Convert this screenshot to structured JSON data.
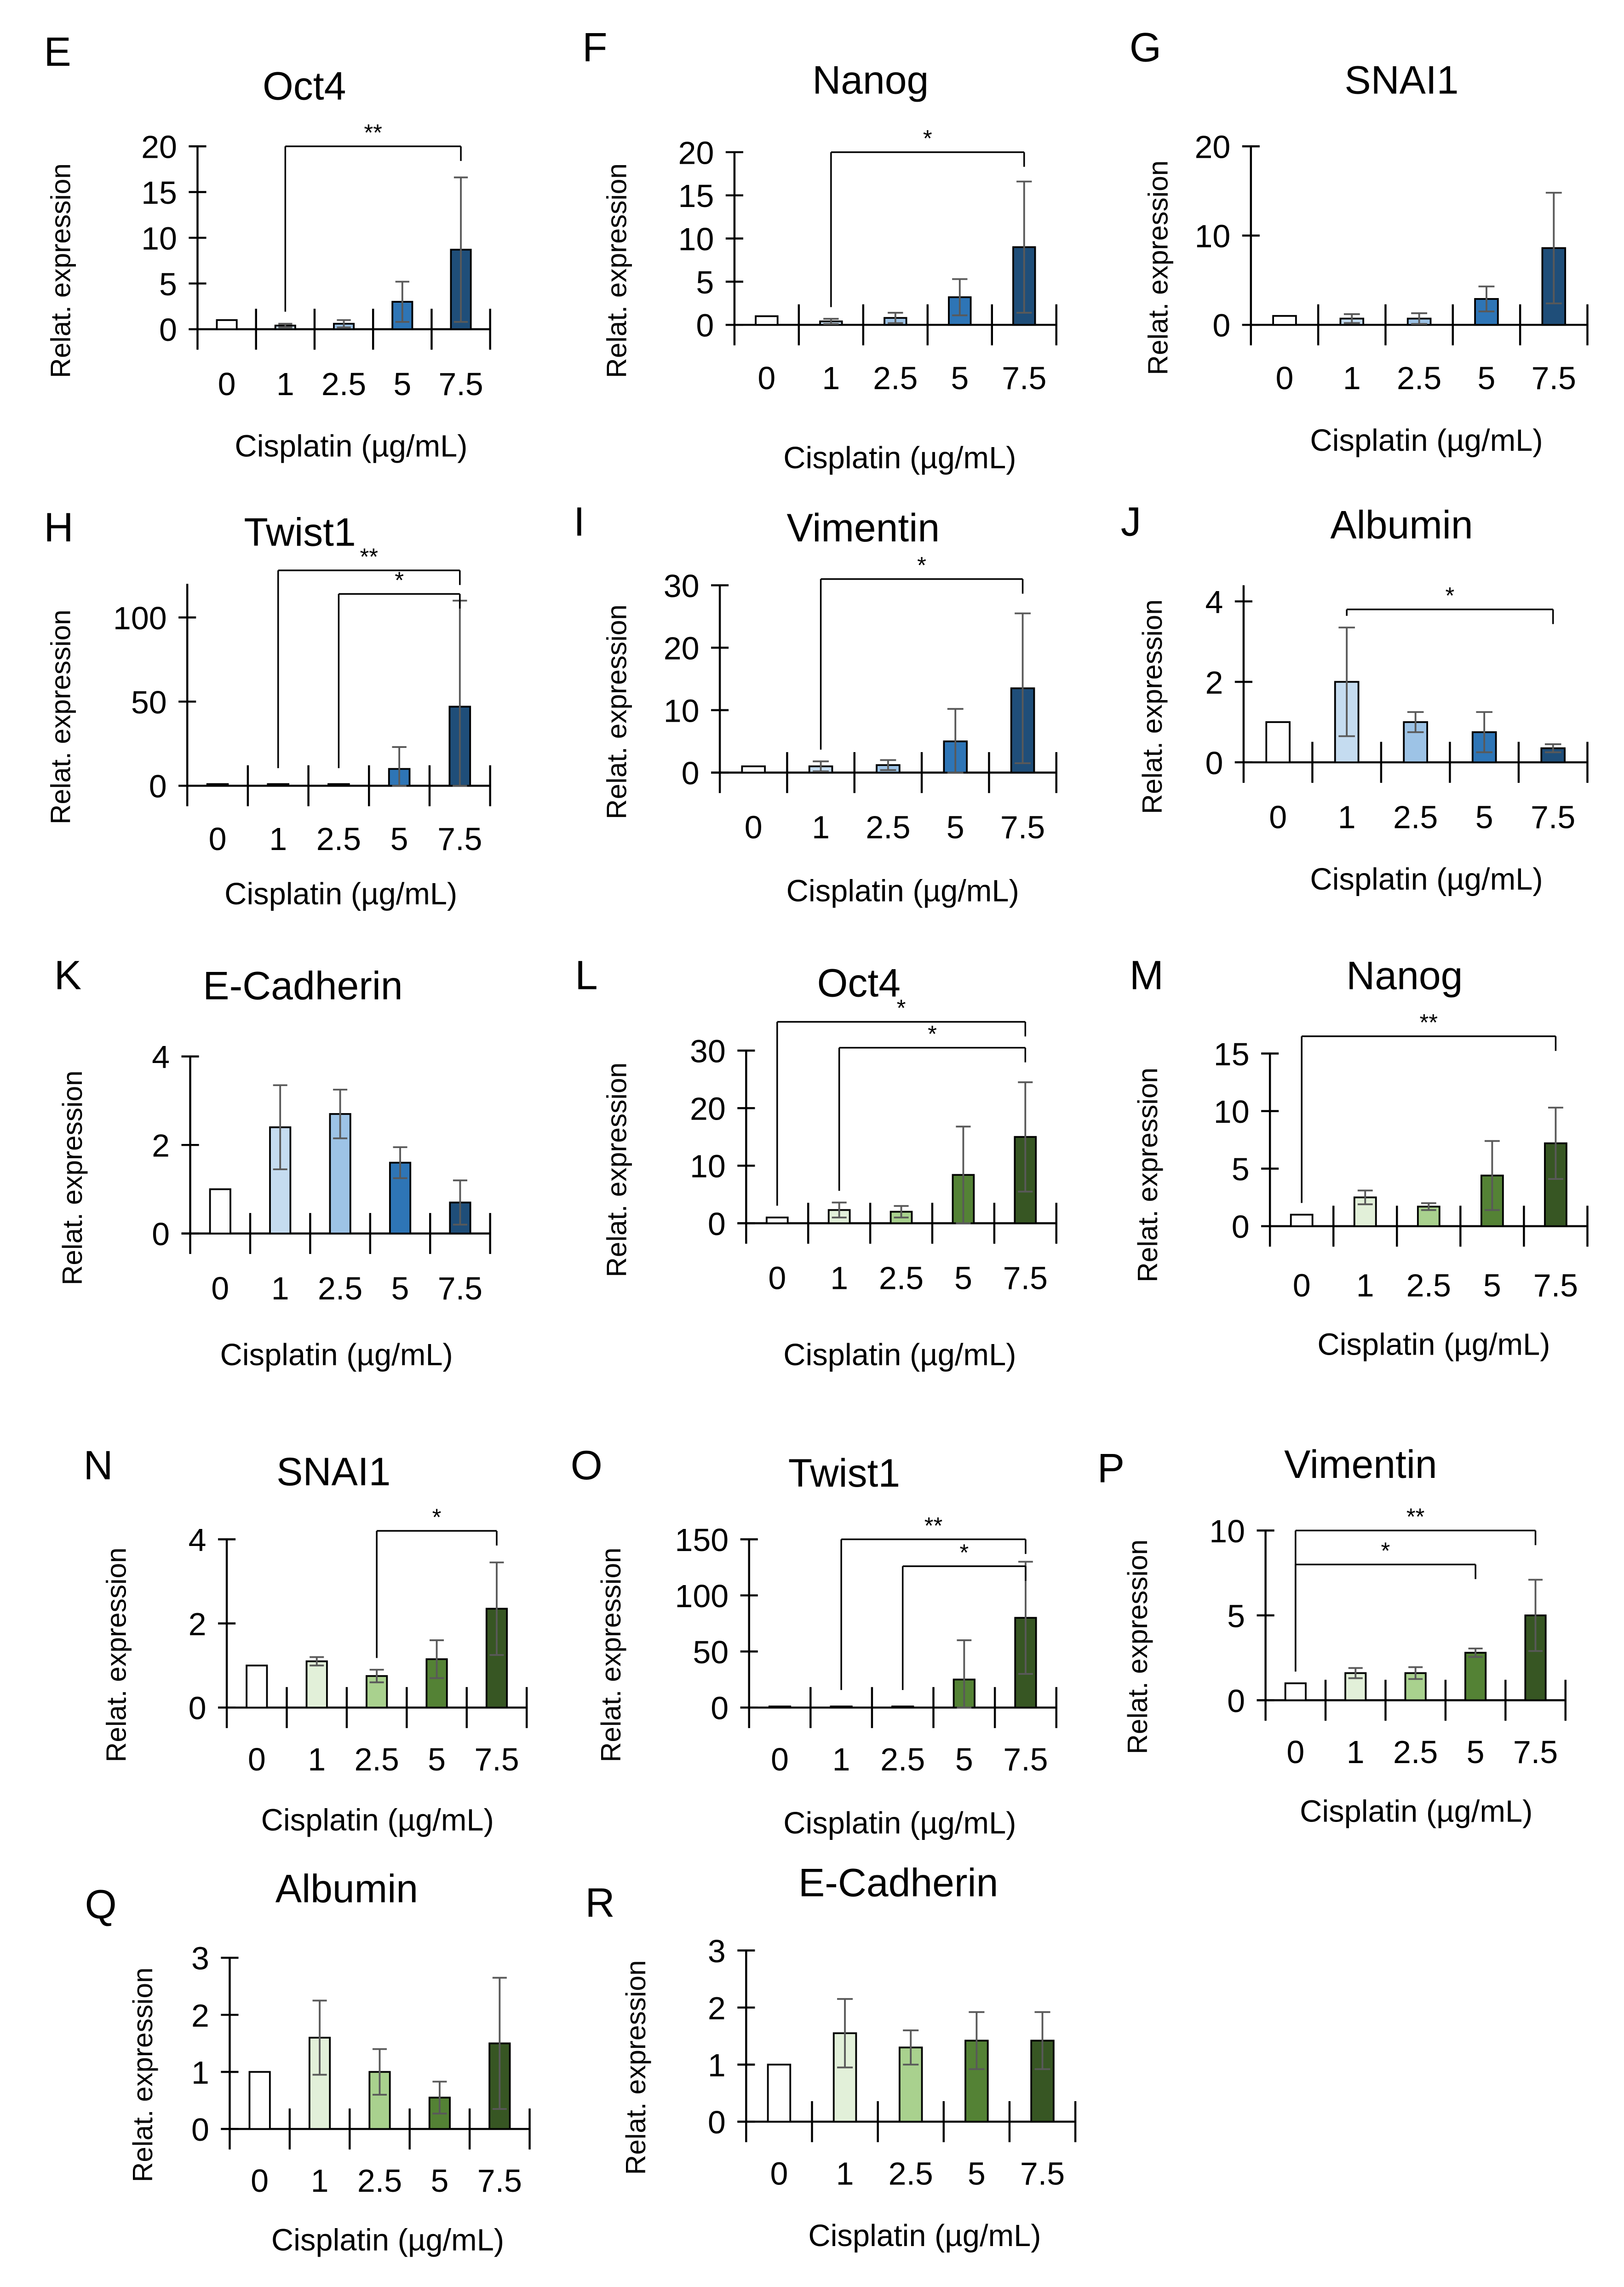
{
  "chart_data": [
    {
      "type": "bar",
      "letter": "E",
      "title": "Oct4",
      "title_grey": false,
      "ylabel": "Relat. expression",
      "ylabel_grey": false,
      "xlabel": "Cisplatin (µg/mL)",
      "categories": [
        "0",
        "1",
        "2.5",
        "5",
        "7.5"
      ],
      "ylim": [
        0,
        20
      ],
      "yticks": [
        0,
        5,
        10,
        15,
        20
      ],
      "values": [
        1,
        0.4,
        0.6,
        3.0,
        8.7
      ],
      "errors": [
        0,
        0.2,
        0.4,
        2.2,
        7.9
      ],
      "palette": "blue",
      "significance": [
        {
          "from": 1,
          "to": 4,
          "label": "**",
          "level": 20
        }
      ]
    },
    {
      "type": "bar",
      "letter": "F",
      "title": "Nanog",
      "title_grey": false,
      "ylabel": "Relat. expression",
      "ylabel_grey": false,
      "xlabel": "Cisplatin (µg/mL)",
      "categories": [
        "0",
        "1",
        "2.5",
        "5",
        "7.5"
      ],
      "ylim": [
        0,
        20
      ],
      "yticks": [
        0,
        5,
        10,
        15,
        20
      ],
      "values": [
        1,
        0.4,
        0.8,
        3.2,
        9.0
      ],
      "errors": [
        0,
        0.3,
        0.6,
        2.1,
        7.6
      ],
      "palette": "blue",
      "significance": [
        {
          "from": 1,
          "to": 4,
          "label": "*",
          "level": 20
        }
      ]
    },
    {
      "type": "bar",
      "letter": "G",
      "title": "SNAI1",
      "title_grey": false,
      "ylabel": "Relat. expression",
      "ylabel_grey": true,
      "xlabel": "Cisplatin (µg/mL)",
      "categories": [
        "0",
        "1",
        "2.5",
        "5",
        "7.5"
      ],
      "ylim": [
        0,
        20
      ],
      "yticks": [
        0,
        10,
        20
      ],
      "values": [
        1,
        0.7,
        0.7,
        2.9,
        8.6
      ],
      "errors": [
        0,
        0.5,
        0.6,
        1.4,
        6.2
      ],
      "palette": "blue",
      "significance": []
    },
    {
      "type": "bar",
      "letter": "H",
      "title": "Twist1",
      "title_grey": true,
      "ylabel": "Relat. expression",
      "ylabel_grey": false,
      "xlabel": "Cisplatin (µg/mL)",
      "categories": [
        "0",
        "1",
        "2.5",
        "5",
        "7.5"
      ],
      "ylim": [
        0,
        120
      ],
      "yticks": [
        0,
        50,
        100
      ],
      "values": [
        1,
        1,
        1,
        10,
        47
      ],
      "errors": [
        0,
        0,
        0,
        13,
        63
      ],
      "palette": "blue",
      "significance": [
        {
          "from": 1,
          "to": 4,
          "label": "**",
          "level": 128
        },
        {
          "from": 2,
          "to": 4,
          "label": "*",
          "level": 114
        }
      ]
    },
    {
      "type": "bar",
      "letter": "I",
      "title": "Vimentin",
      "title_grey": false,
      "ylabel": "Relat. expression",
      "ylabel_grey": false,
      "xlabel": "Cisplatin (µg/mL)",
      "categories": [
        "0",
        "1",
        "2.5",
        "5",
        "7.5"
      ],
      "ylim": [
        0,
        30
      ],
      "yticks": [
        0,
        10,
        20,
        30
      ],
      "values": [
        1,
        1,
        1.2,
        5,
        13.5
      ],
      "errors": [
        0,
        0.8,
        0.8,
        5.2,
        12
      ],
      "palette": "blue",
      "significance": [
        {
          "from": 1,
          "to": 4,
          "label": "*",
          "level": 31
        }
      ]
    },
    {
      "type": "bar",
      "letter": "J",
      "title": "Albumin",
      "title_grey": true,
      "ylabel": "Relat. expression",
      "ylabel_grey": false,
      "xlabel": "Cisplatin (µg/mL)",
      "categories": [
        "0",
        "1",
        "2.5",
        "5",
        "7.5"
      ],
      "ylim": [
        0,
        4.4
      ],
      "yticks": [
        0,
        2,
        4
      ],
      "values": [
        1,
        2,
        1,
        0.75,
        0.35
      ],
      "errors": [
        0,
        1.35,
        0.25,
        0.5,
        0.1
      ],
      "palette": "blue",
      "significance": [
        {
          "from": 1,
          "to": 4,
          "label": "*",
          "level": 3.8
        }
      ]
    },
    {
      "type": "bar",
      "letter": "K",
      "title": "E-Cadherin",
      "title_grey": true,
      "ylabel": "Relat. expression",
      "ylabel_grey": false,
      "xlabel": "Cisplatin (µg/mL)",
      "categories": [
        "0",
        "1",
        "2.5",
        "5",
        "7.5"
      ],
      "ylim": [
        0,
        4
      ],
      "yticks": [
        0,
        2,
        4
      ],
      "values": [
        1,
        2.4,
        2.7,
        1.6,
        0.7
      ],
      "errors": [
        0,
        0.95,
        0.55,
        0.35,
        0.5
      ],
      "palette": "blue",
      "significance": []
    },
    {
      "type": "bar",
      "letter": "L",
      "title": "Oct4",
      "title_grey": false,
      "ylabel": "Relat. expression",
      "ylabel_grey": false,
      "xlabel": "Cisplatin (µg/mL)",
      "categories": [
        "0",
        "1",
        "2.5",
        "5",
        "7.5"
      ],
      "ylim": [
        0,
        30
      ],
      "yticks": [
        0,
        10,
        20,
        30
      ],
      "values": [
        1,
        2.3,
        2,
        8.4,
        15
      ],
      "errors": [
        0,
        1.3,
        1,
        8.4,
        9.5
      ],
      "palette": "green",
      "significance": [
        {
          "from": 0,
          "to": 4,
          "label": "*",
          "level": 35
        },
        {
          "from": 1,
          "to": 4,
          "label": "*",
          "level": 30.5
        }
      ]
    },
    {
      "type": "bar",
      "letter": "M",
      "title": "Nanog",
      "title_grey": false,
      "ylabel": "Relat. expression",
      "ylabel_grey": false,
      "xlabel": "Cisplatin (µg/mL)",
      "categories": [
        "0",
        "1",
        "2.5",
        "5",
        "7.5"
      ],
      "ylim": [
        0,
        15
      ],
      "yticks": [
        0,
        5,
        10,
        15
      ],
      "values": [
        1,
        2.5,
        1.7,
        4.4,
        7.2
      ],
      "errors": [
        0,
        0.6,
        0.3,
        3,
        3.1
      ],
      "palette": "green",
      "significance": [
        {
          "from": 0,
          "to": 4,
          "label": "**",
          "level": 16.5
        }
      ]
    },
    {
      "type": "bar",
      "letter": "N",
      "title": "SNAI1",
      "title_grey": false,
      "ylabel": "Relat. expression",
      "ylabel_grey": false,
      "xlabel": "Cisplatin (µg/mL)",
      "categories": [
        "0",
        "1",
        "2.5",
        "5",
        "7.5"
      ],
      "ylim": [
        0,
        4
      ],
      "yticks": [
        0,
        2,
        4
      ],
      "values": [
        1,
        1.1,
        0.75,
        1.15,
        2.35
      ],
      "errors": [
        0,
        0.1,
        0.15,
        0.45,
        1.1
      ],
      "palette": "green",
      "significance": [
        {
          "from": 2,
          "to": 4,
          "label": "*",
          "level": 4.2
        }
      ]
    },
    {
      "type": "bar",
      "letter": "O",
      "title": "Twist1",
      "title_grey": false,
      "ylabel": "Relat. expression",
      "ylabel_grey": false,
      "xlabel": "Cisplatin (µg/mL)",
      "categories": [
        "0",
        "1",
        "2.5",
        "5",
        "7.5"
      ],
      "ylim": [
        0,
        150
      ],
      "yticks": [
        0,
        50,
        100,
        150
      ],
      "values": [
        1,
        1,
        1,
        25,
        80
      ],
      "errors": [
        0,
        0,
        0,
        35,
        50
      ],
      "palette": "green",
      "significance": [
        {
          "from": 1,
          "to": 4,
          "label": "**",
          "level": 150
        },
        {
          "from": 2,
          "to": 4,
          "label": "*",
          "level": 126
        }
      ]
    },
    {
      "type": "bar",
      "letter": "P",
      "title": "Vimentin",
      "title_grey": false,
      "ylabel": "Relat. expression",
      "ylabel_grey": false,
      "xlabel": "Cisplatin (µg/mL)",
      "categories": [
        "0",
        "1",
        "2.5",
        "5",
        "7.5"
      ],
      "ylim": [
        0,
        10
      ],
      "yticks": [
        0,
        5,
        10
      ],
      "values": [
        1,
        1.6,
        1.6,
        2.8,
        5
      ],
      "errors": [
        0,
        0.3,
        0.35,
        0.25,
        2.1
      ],
      "palette": "green",
      "significance": [
        {
          "from": 0,
          "to": 4,
          "label": "**",
          "level": 10
        },
        {
          "from": 0,
          "to": 3,
          "label": "*",
          "level": 8
        }
      ]
    },
    {
      "type": "bar",
      "letter": "Q",
      "title": "Albumin",
      "title_grey": true,
      "ylabel": "Relat. expression",
      "ylabel_grey": false,
      "xlabel": "Cisplatin (µg/mL)",
      "categories": [
        "0",
        "1",
        "2.5",
        "5",
        "7.5"
      ],
      "ylim": [
        0,
        3
      ],
      "yticks": [
        0,
        1,
        2,
        3
      ],
      "values": [
        1,
        1.6,
        1,
        0.55,
        1.5
      ],
      "errors": [
        0,
        0.65,
        0.4,
        0.28,
        1.15
      ],
      "palette": "green",
      "significance": []
    },
    {
      "type": "bar",
      "letter": "R",
      "title": "E-Cadherin",
      "title_grey": true,
      "ylabel": "Relat. expression",
      "ylabel_grey": false,
      "xlabel": "Cisplatin (µg/mL)",
      "categories": [
        "0",
        "1",
        "2.5",
        "5",
        "7.5"
      ],
      "ylim": [
        0,
        3
      ],
      "yticks": [
        0,
        1,
        2,
        3
      ],
      "values": [
        1,
        1.55,
        1.3,
        1.42,
        1.42
      ],
      "errors": [
        0,
        0.6,
        0.3,
        0.5,
        0.5
      ],
      "palette": "green",
      "significance": []
    }
  ],
  "palettes": {
    "blue": [
      "#ffffff",
      "#c5dcf0",
      "#9dc3e6",
      "#2e75b6",
      "#1f4e79"
    ],
    "green": [
      "#ffffff",
      "#e2f0d9",
      "#a9d18e",
      "#548235",
      "#375623"
    ]
  },
  "colors": {
    "grey_text": "#7f7f7f",
    "axis": "#000000",
    "error_bar": "#595959"
  }
}
